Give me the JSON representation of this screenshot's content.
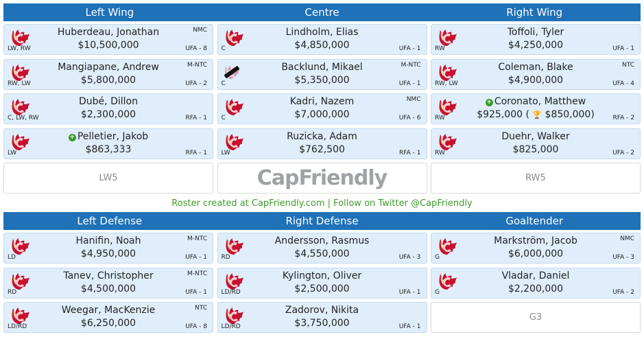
{
  "forwards": {
    "headers": [
      "Left Wing",
      "Centre",
      "Right Wing"
    ],
    "left_wing": [
      {
        "name": "Huberdeau, Jonathan",
        "salary": "$10,500,000",
        "pos": "LW, RW",
        "clause": "NMC",
        "contract": "UFA - 8"
      },
      {
        "name": "Mangiapane, Andrew",
        "salary": "$5,800,000",
        "pos": "RW, LW",
        "clause": "M-NTC",
        "contract": "UFA - 2"
      },
      {
        "name": "Dubé, Dillon",
        "salary": "$2,300,000",
        "pos": "C, LW, RW",
        "clause": "",
        "contract": "RFA - 1"
      },
      {
        "name": "Pelletier, Jakob",
        "salary": "$863,333",
        "pos": "LW",
        "clause": "",
        "contract": "RFA - 1",
        "plus": true
      }
    ],
    "left_wing_empty": "LW5",
    "centre": [
      {
        "name": "Lindholm, Elias",
        "salary": "$4,850,000",
        "pos": "C",
        "clause": "",
        "contract": "UFA - 1"
      },
      {
        "name": "Backlund, Mikael",
        "salary": "$5,350,000",
        "pos": "C",
        "clause": "M-NTC",
        "contract": "UFA - 1",
        "captain": true
      },
      {
        "name": "Kadri, Nazem",
        "salary": "$7,000,000",
        "pos": "C",
        "clause": "NMC",
        "contract": "UFA - 6"
      },
      {
        "name": "Ruzicka, Adam",
        "salary": "$762,500",
        "pos": "LW",
        "clause": "",
        "contract": "RFA - 1"
      }
    ],
    "brand": "CapFriendly",
    "right_wing": [
      {
        "name": "Toffoli, Tyler",
        "salary": "$4,250,000",
        "pos": "RW",
        "clause": "",
        "contract": "UFA - 1"
      },
      {
        "name": "Coleman, Blake",
        "salary": "$4,900,000",
        "pos": "RW, LW",
        "clause": "NTC",
        "contract": "UFA - 4"
      },
      {
        "name": "Coronato, Matthew",
        "salary": "$925,000 (",
        "bonus": "$850,000)",
        "pos": "RW",
        "clause": "",
        "contract": "RFA - 2",
        "plus": true
      },
      {
        "name": "Duehr, Walker",
        "salary": "$825,000",
        "pos": "RW",
        "clause": "",
        "contract": "UFA - 2"
      }
    ],
    "right_wing_empty": "RW5"
  },
  "footer": "Roster created at CapFriendly.com | Follow on Twitter @CapFriendly",
  "defense": {
    "headers": [
      "Left Defense",
      "Right Defense",
      "Goaltender"
    ],
    "left_defense": [
      {
        "name": "Hanifin, Noah",
        "salary": "$4,950,000",
        "pos": "LD",
        "clause": "M-NTC",
        "contract": "UFA - 1"
      },
      {
        "name": "Tanev, Christopher",
        "salary": "$4,500,000",
        "pos": "RD",
        "clause": "M-NTC",
        "contract": "UFA - 1"
      },
      {
        "name": "Weegar, MacKenzie",
        "salary": "$6,250,000",
        "pos": "LD/RD",
        "clause": "NTC",
        "contract": "UFA - 8"
      }
    ],
    "right_defense": [
      {
        "name": "Andersson, Rasmus",
        "salary": "$4,550,000",
        "pos": "RD",
        "clause": "",
        "contract": "UFA - 3"
      },
      {
        "name": "Kylington, Oliver",
        "salary": "$2,500,000",
        "pos": "LD/RD",
        "clause": "",
        "contract": "UFA - 1"
      },
      {
        "name": "Zadorov, Nikita",
        "salary": "$3,750,000",
        "pos": "LD/RD",
        "clause": "",
        "contract": "UFA - 1"
      }
    ],
    "goaltender": [
      {
        "name": "Markström, Jacob",
        "salary": "$6,000,000",
        "pos": "G",
        "clause": "NMC",
        "contract": "UFA - 3"
      },
      {
        "name": "Vladar, Daniel",
        "salary": "$2,200,000",
        "pos": "G",
        "clause": "",
        "contract": "UFA - 2"
      }
    ],
    "goaltender_empty": "G3"
  },
  "colors": {
    "header_bg": "#1f71b8",
    "card_bg": "#dfeefa",
    "footer_text": "#3d9b2b",
    "team_red": "#c8102e"
  },
  "icons": {
    "team_logo": "flaming-c-logo-icon",
    "plus": "plus-circle-icon",
    "trophy": "trophy-icon",
    "captain": "pencil-icon"
  }
}
